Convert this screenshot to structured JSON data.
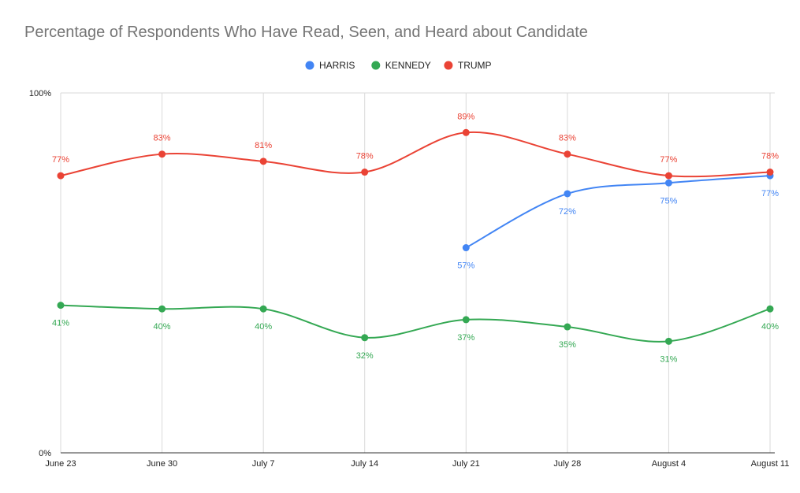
{
  "chart_data": {
    "type": "line",
    "title": "Percentage of Respondents Who Have Read, Seen, and Heard about Candidate",
    "xlabel": "",
    "ylabel": "",
    "categories": [
      "June 23",
      "June 30",
      "July 7",
      "July 14",
      "July 21",
      "July 28",
      "August 4",
      "August 11"
    ],
    "ylim": [
      0,
      100
    ],
    "y_ticks": [
      {
        "value": 0,
        "label": "0%"
      },
      {
        "value": 100,
        "label": "100%"
      }
    ],
    "grid": "vertical",
    "legend": "top-center",
    "series": [
      {
        "name": "HARRIS",
        "color": "#4285f4",
        "label_position": "below",
        "values": [
          null,
          null,
          null,
          null,
          57,
          72,
          75,
          77
        ],
        "labels": [
          "",
          "",
          "",
          "",
          "57%",
          "72%",
          "75%",
          "77%"
        ]
      },
      {
        "name": "KENNEDY",
        "color": "#34a853",
        "label_position": "below",
        "values": [
          41,
          40,
          40,
          32,
          37,
          35,
          31,
          40
        ],
        "labels": [
          "41%",
          "40%",
          "40%",
          "32%",
          "37%",
          "35%",
          "31%",
          "40%"
        ]
      },
      {
        "name": "TRUMP",
        "color": "#ea4335",
        "label_position": "above",
        "values": [
          77,
          83,
          81,
          78,
          89,
          83,
          77,
          78
        ],
        "labels": [
          "77%",
          "83%",
          "81%",
          "78%",
          "89%",
          "83%",
          "77%",
          "78%"
        ]
      }
    ]
  }
}
